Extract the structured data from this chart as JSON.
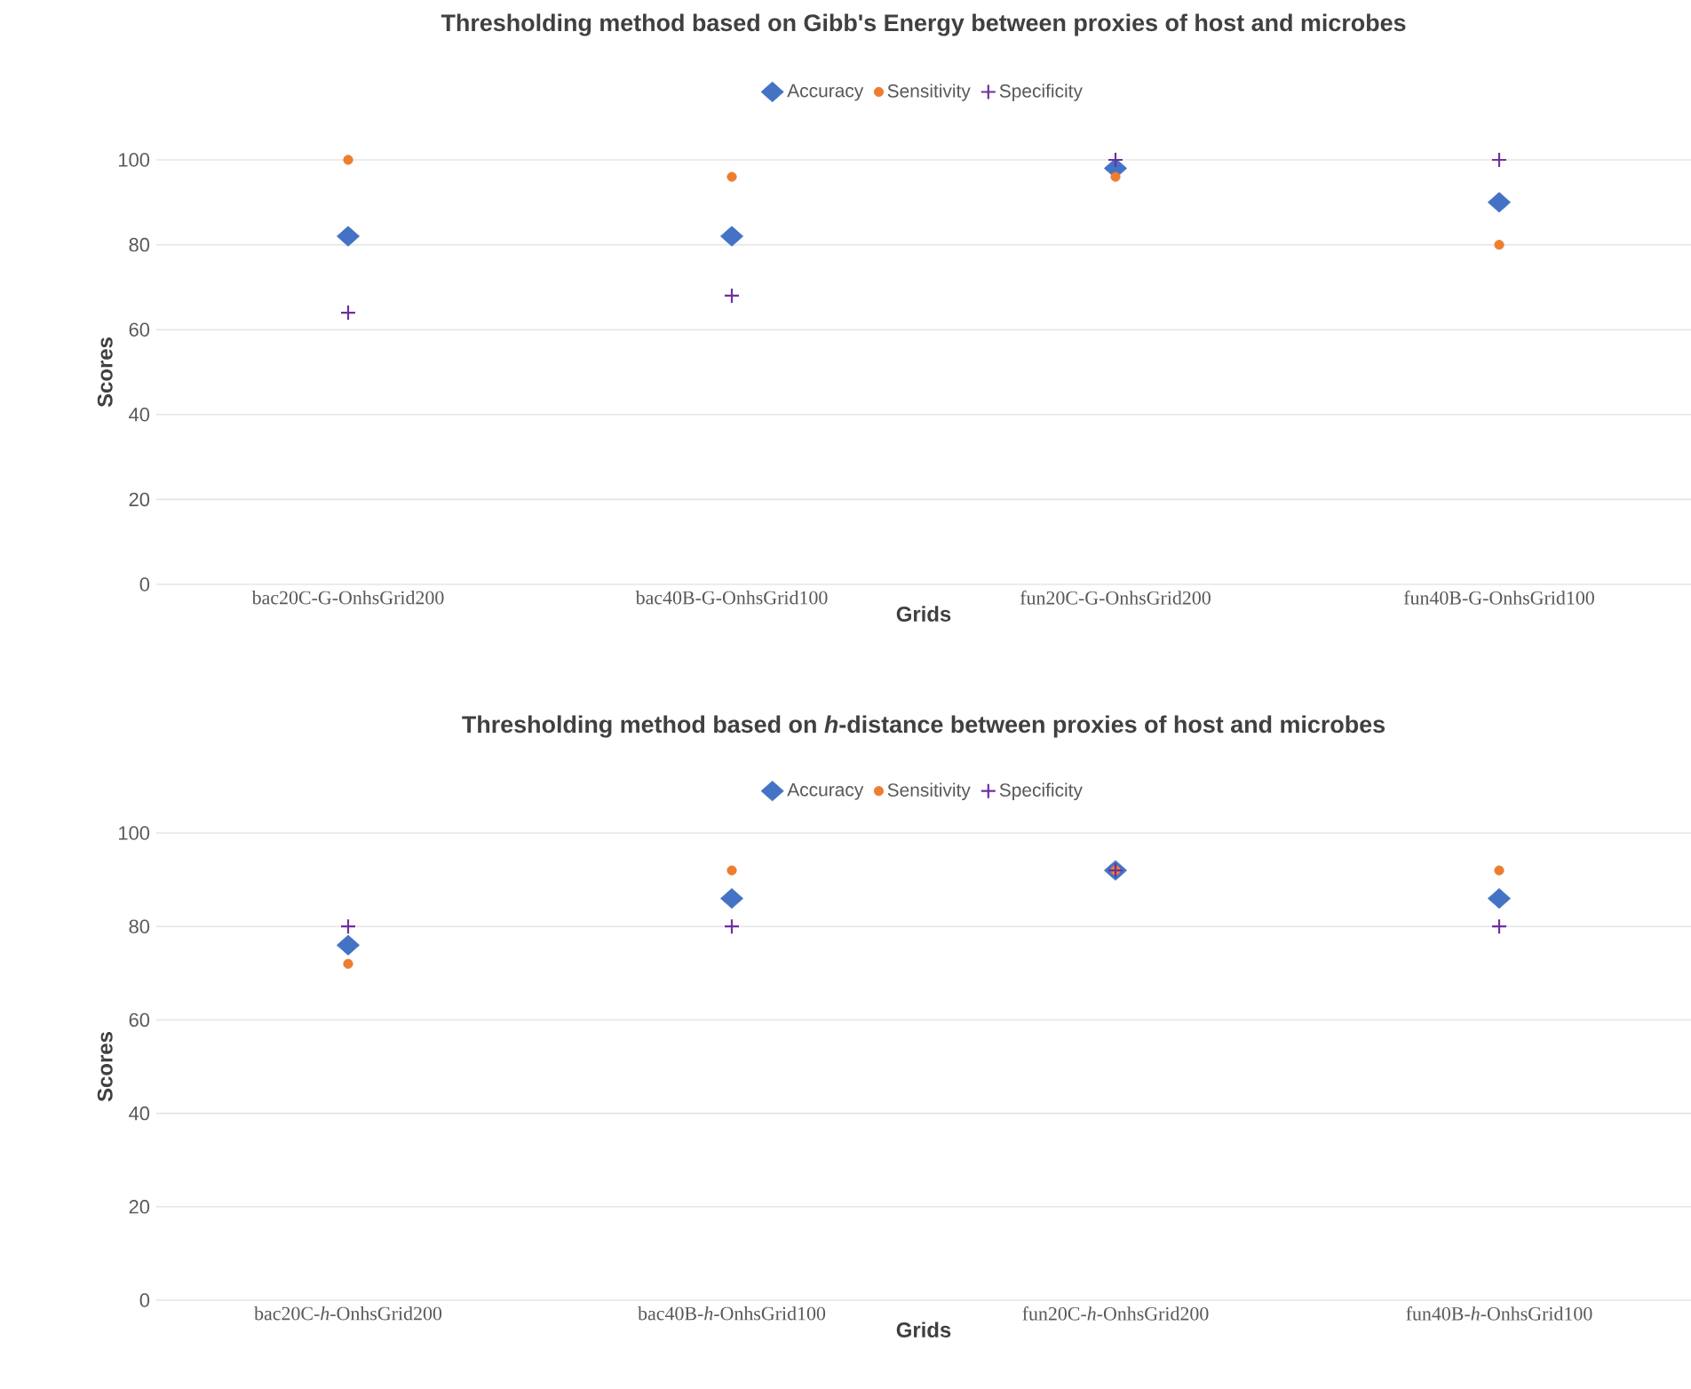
{
  "chart_data": [
    {
      "type": "scatter",
      "title": "Thresholding method based on Gibb's Energy between proxies of host and microbes",
      "xlabel": "Grids",
      "ylabel": "Scores",
      "categories": [
        "bac20C-G-OnhsGrid200",
        "bac40B-G-OnhsGrid100",
        "fun20C-G-OnhsGrid200",
        "fun40B-G-OnhsGrid100"
      ],
      "series": [
        {
          "name": "Accuracy",
          "color": "#4472c4",
          "marker": "diamond",
          "values": [
            82,
            82,
            98,
            90
          ]
        },
        {
          "name": "Sensitivity",
          "color": "#ed7d31",
          "marker": "circle",
          "values": [
            100,
            96,
            96,
            80
          ]
        },
        {
          "name": "Specificity",
          "color": "#7030a0",
          "marker": "cross",
          "values": [
            64,
            68,
            100,
            100
          ]
        }
      ],
      "ylim": [
        0,
        100
      ],
      "yticks": [
        0,
        20,
        40,
        60,
        80,
        100
      ],
      "grid": "y",
      "legend": "top"
    },
    {
      "type": "scatter",
      "title": "Thresholding method based on *h*-distance between proxies of host and microbes",
      "xlabel": "Grids",
      "ylabel": "Scores",
      "categories": [
        "bac20C-*h*-OnhsGrid200",
        "bac40B-*h*-OnhsGrid100",
        "fun20C-*h*-OnhsGrid200",
        "fun40B-*h*-OnhsGrid100"
      ],
      "series": [
        {
          "name": "Accuracy",
          "color": "#4472c4",
          "marker": "diamond",
          "values": [
            76,
            86,
            92,
            86
          ]
        },
        {
          "name": "Sensitivity",
          "color": "#ed7d31",
          "marker": "circle",
          "values": [
            72,
            92,
            92,
            92
          ]
        },
        {
          "name": "Specificity",
          "color": "#7030a0",
          "marker": "cross",
          "values": [
            80,
            80,
            92,
            80
          ]
        }
      ],
      "ylim": [
        0,
        100
      ],
      "yticks": [
        0,
        20,
        40,
        60,
        80,
        100
      ],
      "grid": "y",
      "legend": "top"
    }
  ]
}
